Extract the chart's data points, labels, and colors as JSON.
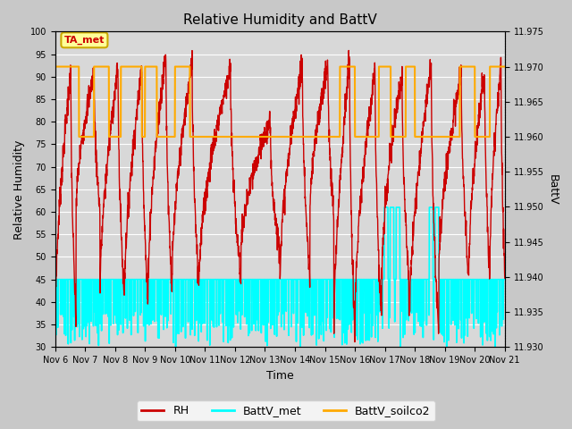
{
  "title": "Relative Humidity and BattV",
  "xlabel": "Time",
  "ylabel_left": "Relative Humidity",
  "ylabel_right": "BattV",
  "annotation_text": "TA_met",
  "annotation_color": "#cc0000",
  "annotation_bg": "#ffff99",
  "annotation_border": "#ccaa00",
  "fig_facecolor": "#c8c8c8",
  "plot_facecolor": "#d8d8d8",
  "ylim_left": [
    30,
    100
  ],
  "ylim_right": [
    11.93,
    11.975
  ],
  "yticks_left": [
    30,
    35,
    40,
    45,
    50,
    55,
    60,
    65,
    70,
    75,
    80,
    85,
    90,
    95,
    100
  ],
  "yticks_right": [
    11.93,
    11.935,
    11.94,
    11.945,
    11.95,
    11.955,
    11.96,
    11.965,
    11.97,
    11.975
  ],
  "xtick_labels": [
    "Nov 6",
    "Nov 7",
    "Nov 8",
    "Nov 9",
    "Nov 10",
    "Nov 11",
    "Nov 12",
    "Nov 13",
    "Nov 14",
    "Nov 15",
    "Nov 16",
    "Nov 17",
    "Nov 18",
    "Nov 19",
    "Nov 20",
    "Nov 21"
  ],
  "rh_color": "#cc0000",
  "battv_met_color": "#00ffff",
  "battv_soilco2_color": "#ffaa00",
  "rh_linewidth": 1.0,
  "battv_linewidth": 1.2,
  "legend_labels": [
    "RH",
    "BattV_met",
    "BattV_soilco2"
  ],
  "grid_color": "#ffffff",
  "title_fontsize": 11,
  "tick_fontsize": 7,
  "n_days": 15,
  "pts_per_day": 144
}
